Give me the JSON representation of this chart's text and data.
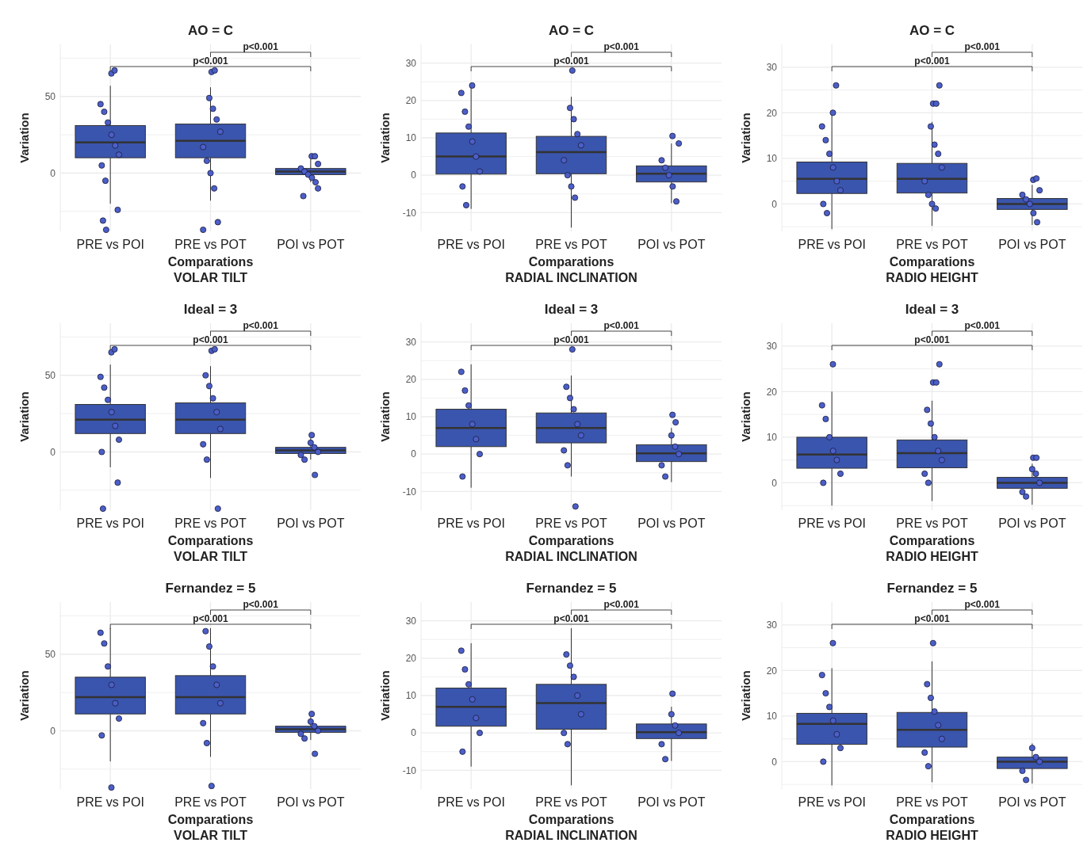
{
  "chart_data": [
    {
      "type": "box",
      "title": "AO = C",
      "xlabel": "Comparations",
      "ylabel": "Variation",
      "annotations": [
        "p<0.001",
        "p<0.001",
        "VOLAR TILT"
      ],
      "categories": [
        "PRE vs POI",
        "PRE vs POT",
        "POI vs POT"
      ],
      "ylim": [
        -38,
        84
      ],
      "yticks": [
        {
          "value": -25,
          "label": null
        },
        0,
        {
          "value": 25,
          "label": null
        },
        50,
        {
          "value": 75,
          "label": null
        }
      ],
      "grid": true,
      "marker": "circle",
      "series": [
        {
          "type": "box",
          "color": "#3a55ad",
          "boxes": [
            {
              "low": -20,
              "q1": 10,
              "median": 20,
              "q3": 31,
              "high": 57,
              "outliers": [
                65,
                67,
                -24,
                -31,
                -37
              ]
            },
            {
              "low": -18,
              "q1": 10,
              "median": 21,
              "q3": 32,
              "high": 56,
              "outliers": [
                66,
                67,
                -32,
                -37
              ]
            },
            {
              "low": -6,
              "q1": -1,
              "median": 1,
              "q3": 3,
              "high": 9,
              "outliers": [
                11,
                11,
                -10,
                -15
              ]
            }
          ]
        },
        {
          "type": "scatter",
          "color": "#4b5fc9",
          "x": [
            "PRE vs POI",
            "PRE vs POI",
            "PRE vs POI",
            "PRE vs POI",
            "PRE vs POI",
            "PRE vs POI",
            "PRE vs POI",
            "PRE vs POI",
            "PRE vs POT",
            "PRE vs POT",
            "PRE vs POT",
            "PRE vs POT",
            "PRE vs POT",
            "PRE vs POT",
            "PRE vs POT",
            "PRE vs POT",
            "POI vs POT",
            "POI vs POT",
            "POI vs POT",
            "POI vs POT",
            "POI vs POT",
            "POI vs POT"
          ],
          "values": [
            45,
            40,
            33,
            25,
            18,
            12,
            5,
            -5,
            49,
            42,
            35,
            27,
            17,
            8,
            0,
            -10,
            6,
            3,
            1,
            -1,
            -3,
            -6
          ]
        }
      ]
    },
    {
      "type": "box",
      "title": "AO = C",
      "xlabel": "Comparations",
      "ylabel": "Variation",
      "annotations": [
        "p<0.001",
        "p<0.001",
        "RADIAL INCLINATION"
      ],
      "categories": [
        "PRE vs POI",
        "PRE vs POT",
        "POI vs POT"
      ],
      "ylim": [
        -15,
        35
      ],
      "yticks": [
        -10,
        {
          "value": -5,
          "label": null
        },
        0,
        {
          "value": 5,
          "label": null
        },
        10,
        {
          "value": 15,
          "label": null
        },
        20,
        {
          "value": 25,
          "label": null
        },
        30
      ],
      "grid": true,
      "marker": "circle",
      "series": [
        {
          "type": "box",
          "color": "#3a55ad",
          "boxes": [
            {
              "low": -9,
              "q1": 0.3,
              "median": 5,
              "q3": 11.3,
              "high": 23.5,
              "outliers": [
                24
              ]
            },
            {
              "low": -14,
              "q1": 0.4,
              "median": 6.2,
              "q3": 10.4,
              "high": 21,
              "outliers": [
                28
              ]
            },
            {
              "low": -7.5,
              "q1": -1.8,
              "median": 0.4,
              "q3": 2.5,
              "high": 8.5,
              "outliers": [
                10.5
              ]
            }
          ]
        },
        {
          "type": "scatter",
          "color": "#4b5fc9",
          "x": [
            "PRE vs POI",
            "PRE vs POI",
            "PRE vs POI",
            "PRE vs POI",
            "PRE vs POI",
            "PRE vs POI",
            "PRE vs POI",
            "PRE vs POI",
            "PRE vs POT",
            "PRE vs POT",
            "PRE vs POT",
            "PRE vs POT",
            "PRE vs POT",
            "PRE vs POT",
            "PRE vs POT",
            "PRE vs POT",
            "POI vs POT",
            "POI vs POT",
            "POI vs POT",
            "POI vs POT",
            "POI vs POT",
            "POI vs POT"
          ],
          "values": [
            22,
            17,
            13,
            9,
            5,
            1,
            -3,
            -8,
            18,
            15,
            11,
            8,
            4,
            0,
            -3,
            -6,
            8.5,
            4,
            2,
            0,
            -3,
            -7
          ]
        }
      ]
    },
    {
      "type": "box",
      "title": "AO = C",
      "xlabel": "Comparations",
      "ylabel": "Variation",
      "annotations": [
        "p<0.001",
        "p<0.001",
        "RADIO HEIGHT"
      ],
      "categories": [
        "PRE vs POI",
        "PRE vs POT",
        "POI vs POT"
      ],
      "ylim": [
        -6,
        35
      ],
      "yticks": [
        {
          "value": -5,
          "label": null
        },
        0,
        {
          "value": 5,
          "label": null
        },
        10,
        {
          "value": 15,
          "label": null
        },
        20,
        {
          "value": 25,
          "label": null
        },
        30
      ],
      "grid": true,
      "marker": "circle",
      "series": [
        {
          "type": "box",
          "color": "#3a55ad",
          "boxes": [
            {
              "low": -5.5,
              "q1": 2.3,
              "median": 5.5,
              "q3": 9.2,
              "high": 19.5,
              "outliers": [
                20,
                26
              ]
            },
            {
              "low": -4.8,
              "q1": 2.4,
              "median": 5.5,
              "q3": 8.9,
              "high": 18,
              "outliers": [
                22,
                22,
                26
              ]
            },
            {
              "low": -4.6,
              "q1": -1.2,
              "median": 0,
              "q3": 1.2,
              "high": 4.2,
              "outliers": [
                5.3,
                5.6
              ]
            }
          ]
        },
        {
          "type": "scatter",
          "color": "#4b5fc9",
          "x": [
            "PRE vs POI",
            "PRE vs POI",
            "PRE vs POI",
            "PRE vs POI",
            "PRE vs POI",
            "PRE vs POI",
            "PRE vs POI",
            "PRE vs POI",
            "PRE vs POT",
            "PRE vs POT",
            "PRE vs POT",
            "PRE vs POT",
            "PRE vs POT",
            "PRE vs POT",
            "PRE vs POT",
            "PRE vs POT",
            "POI vs POT",
            "POI vs POT",
            "POI vs POT",
            "POI vs POT",
            "POI vs POT",
            "POI vs POT"
          ],
          "values": [
            17,
            14,
            11,
            8,
            5,
            3,
            0,
            -2,
            17,
            13,
            11,
            8,
            5,
            2,
            0,
            -1,
            3,
            2,
            1,
            0,
            -2,
            -4
          ]
        }
      ]
    },
    {
      "type": "box",
      "title": "Ideal = 3",
      "xlabel": "Comparations",
      "ylabel": "Variation",
      "annotations": [
        "p<0.001",
        "p<0.001",
        "VOLAR TILT"
      ],
      "categories": [
        "PRE vs POI",
        "PRE vs POT",
        "POI vs POT"
      ],
      "ylim": [
        -38,
        84
      ],
      "yticks": [
        {
          "value": -25,
          "label": null
        },
        0,
        {
          "value": 25,
          "label": null
        },
        50,
        {
          "value": 75,
          "label": null
        }
      ],
      "grid": true,
      "marker": "circle",
      "series": [
        {
          "type": "box",
          "color": "#3a55ad",
          "boxes": [
            {
              "low": -10,
              "q1": 12,
              "median": 21,
              "q3": 31,
              "high": 57,
              "outliers": [
                65,
                67,
                -20,
                -37
              ]
            },
            {
              "low": -17,
              "q1": 12,
              "median": 21,
              "q3": 32,
              "high": 56,
              "outliers": [
                66,
                67,
                -37
              ]
            },
            {
              "low": -5,
              "q1": -1,
              "median": 1,
              "q3": 3,
              "high": 9,
              "outliers": [
                11,
                -15
              ]
            }
          ]
        },
        {
          "type": "scatter",
          "color": "#4b5fc9",
          "x": [
            "PRE vs POI",
            "PRE vs POI",
            "PRE vs POI",
            "PRE vs POI",
            "PRE vs POI",
            "PRE vs POI",
            "PRE vs POI",
            "PRE vs POT",
            "PRE vs POT",
            "PRE vs POT",
            "PRE vs POT",
            "PRE vs POT",
            "PRE vs POT",
            "PRE vs POT",
            "POI vs POT",
            "POI vs POT",
            "POI vs POT",
            "POI vs POT",
            "POI vs POT"
          ],
          "values": [
            49,
            42,
            34,
            26,
            17,
            8,
            0,
            50,
            43,
            35,
            26,
            15,
            5,
            -5,
            6,
            3,
            0,
            -2,
            -5
          ]
        }
      ]
    },
    {
      "type": "box",
      "title": "Ideal = 3",
      "xlabel": "Comparations",
      "ylabel": "Variation",
      "annotations": [
        "p<0.001",
        "p<0.001",
        "RADIAL INCLINATION"
      ],
      "categories": [
        "PRE vs POI",
        "PRE vs POT",
        "POI vs POT"
      ],
      "ylim": [
        -15,
        35
      ],
      "yticks": [
        -10,
        {
          "value": -5,
          "label": null
        },
        0,
        {
          "value": 5,
          "label": null
        },
        10,
        {
          "value": 15,
          "label": null
        },
        20,
        {
          "value": 25,
          "label": null
        },
        30
      ],
      "grid": true,
      "marker": "circle",
      "series": [
        {
          "type": "box",
          "color": "#3a55ad",
          "boxes": [
            {
              "low": -9,
              "q1": 2,
              "median": 7,
              "q3": 12,
              "high": 24
            },
            {
              "low": -6,
              "q1": 3,
              "median": 7,
              "q3": 11,
              "high": 21,
              "outliers": [
                28,
                -14
              ]
            },
            {
              "low": -7.5,
              "q1": -2,
              "median": 0.2,
              "q3": 2.5,
              "high": 7,
              "outliers": [
                10.5,
                8.5
              ]
            }
          ]
        },
        {
          "type": "scatter",
          "color": "#4b5fc9",
          "x": [
            "PRE vs POI",
            "PRE vs POI",
            "PRE vs POI",
            "PRE vs POI",
            "PRE vs POI",
            "PRE vs POI",
            "PRE vs POI",
            "PRE vs POT",
            "PRE vs POT",
            "PRE vs POT",
            "PRE vs POT",
            "PRE vs POT",
            "PRE vs POT",
            "PRE vs POT",
            "POI vs POT",
            "POI vs POT",
            "POI vs POT",
            "POI vs POT",
            "POI vs POT"
          ],
          "values": [
            22,
            17,
            13,
            8,
            4,
            0,
            -6,
            18,
            15,
            12,
            8,
            5,
            1,
            -3,
            5,
            2,
            0,
            -3,
            -6
          ]
        }
      ]
    },
    {
      "type": "box",
      "title": "Ideal = 3",
      "xlabel": "Comparations",
      "ylabel": "Variation",
      "annotations": [
        "p<0.001",
        "p<0.001",
        "RADIO HEIGHT"
      ],
      "categories": [
        "PRE vs POI",
        "PRE vs POT",
        "POI vs POT"
      ],
      "ylim": [
        -6,
        35
      ],
      "yticks": [
        {
          "value": -5,
          "label": null
        },
        0,
        {
          "value": 5,
          "label": null
        },
        10,
        {
          "value": 15,
          "label": null
        },
        20,
        {
          "value": 25,
          "label": null
        },
        30
      ],
      "grid": true,
      "marker": "circle",
      "series": [
        {
          "type": "box",
          "color": "#3a55ad",
          "boxes": [
            {
              "low": -5,
              "q1": 3.2,
              "median": 6.2,
              "q3": 10,
              "high": 20,
              "outliers": [
                26
              ]
            },
            {
              "low": -4,
              "q1": 3.3,
              "median": 6.5,
              "q3": 9.4,
              "high": 18,
              "outliers": [
                22,
                22,
                26
              ]
            },
            {
              "low": -4.8,
              "q1": -1.2,
              "median": 0,
              "q3": 1.2,
              "high": 4.2,
              "outliers": [
                5.5,
                5.5
              ]
            }
          ]
        },
        {
          "type": "scatter",
          "color": "#4b5fc9",
          "x": [
            "PRE vs POI",
            "PRE vs POI",
            "PRE vs POI",
            "PRE vs POI",
            "PRE vs POI",
            "PRE vs POI",
            "PRE vs POI",
            "PRE vs POT",
            "PRE vs POT",
            "PRE vs POT",
            "PRE vs POT",
            "PRE vs POT",
            "PRE vs POT",
            "PRE vs POT",
            "POI vs POT",
            "POI vs POT",
            "POI vs POT",
            "POI vs POT",
            "POI vs POT"
          ],
          "values": [
            17,
            14,
            10,
            7,
            5,
            2,
            0,
            16,
            13,
            10,
            7,
            5,
            2,
            0,
            3,
            2,
            0,
            -2,
            -3
          ]
        }
      ]
    },
    {
      "type": "box",
      "title": "Fernandez = 5",
      "xlabel": "Comparations",
      "ylabel": "Variation",
      "annotations": [
        "p<0.001",
        "p<0.001",
        "VOLAR TILT"
      ],
      "categories": [
        "PRE vs POI",
        "PRE vs POT",
        "POI vs POT"
      ],
      "ylim": [
        -38,
        84
      ],
      "yticks": [
        {
          "value": -25,
          "label": null
        },
        0,
        {
          "value": 25,
          "label": null
        },
        50,
        {
          "value": 75,
          "label": null
        }
      ],
      "grid": true,
      "marker": "circle",
      "series": [
        {
          "type": "box",
          "color": "#3a55ad",
          "boxes": [
            {
              "low": -20,
              "q1": 11,
              "median": 22,
              "q3": 35,
              "high": 67,
              "outliers": [
                -37
              ]
            },
            {
              "low": -17,
              "q1": 11,
              "median": 22,
              "q3": 36,
              "high": 67,
              "outliers": [
                -36
              ]
            },
            {
              "low": -6,
              "q1": -1,
              "median": 1,
              "q3": 3,
              "high": 9,
              "outliers": [
                11,
                -15
              ]
            }
          ]
        },
        {
          "type": "scatter",
          "color": "#4b5fc9",
          "x": [
            "PRE vs POI",
            "PRE vs POI",
            "PRE vs POI",
            "PRE vs POI",
            "PRE vs POI",
            "PRE vs POI",
            "PRE vs POI",
            "PRE vs POT",
            "PRE vs POT",
            "PRE vs POT",
            "PRE vs POT",
            "PRE vs POT",
            "PRE vs POT",
            "PRE vs POT",
            "POI vs POT",
            "POI vs POT",
            "POI vs POT",
            "POI vs POT",
            "POI vs POT"
          ],
          "values": [
            64,
            57,
            42,
            30,
            18,
            8,
            -3,
            65,
            55,
            42,
            30,
            18,
            5,
            -8,
            6,
            3,
            0,
            -2,
            -5
          ]
        }
      ]
    },
    {
      "type": "box",
      "title": "Fernandez = 5",
      "xlabel": "Comparations",
      "ylabel": "Variation",
      "annotations": [
        "p<0.001",
        "p<0.001",
        "RADIAL INCLINATION"
      ],
      "categories": [
        "PRE vs POI",
        "PRE vs POT",
        "POI vs POT"
      ],
      "ylim": [
        -15,
        35
      ],
      "yticks": [
        -10,
        {
          "value": -5,
          "label": null
        },
        0,
        {
          "value": 5,
          "label": null
        },
        10,
        {
          "value": 15,
          "label": null
        },
        20,
        {
          "value": 25,
          "label": null
        },
        30
      ],
      "grid": true,
      "marker": "circle",
      "series": [
        {
          "type": "box",
          "color": "#3a55ad",
          "boxes": [
            {
              "low": -9,
              "q1": 1.8,
              "median": 7,
              "q3": 12,
              "high": 24
            },
            {
              "low": -14,
              "q1": 1,
              "median": 8,
              "q3": 13,
              "high": 28
            },
            {
              "low": -7.5,
              "q1": -1.5,
              "median": 0.2,
              "q3": 2.4,
              "high": 7,
              "outliers": [
                10.5
              ]
            }
          ]
        },
        {
          "type": "scatter",
          "color": "#4b5fc9",
          "x": [
            "PRE vs POI",
            "PRE vs POI",
            "PRE vs POI",
            "PRE vs POI",
            "PRE vs POI",
            "PRE vs POI",
            "PRE vs POI",
            "PRE vs POT",
            "PRE vs POT",
            "PRE vs POT",
            "PRE vs POT",
            "PRE vs POT",
            "PRE vs POT",
            "PRE vs POT",
            "POI vs POT",
            "POI vs POT",
            "POI vs POT",
            "POI vs POT",
            "POI vs POT"
          ],
          "values": [
            22,
            17,
            13,
            9,
            4,
            0,
            -5,
            21,
            18,
            15,
            10,
            5,
            0,
            -3,
            5,
            2,
            0,
            -3,
            -7
          ]
        }
      ]
    },
    {
      "type": "box",
      "title": "Fernandez = 5",
      "xlabel": "Comparations",
      "ylabel": "Variation",
      "annotations": [
        "p<0.001",
        "p<0.001",
        "RADIO HEIGHT"
      ],
      "categories": [
        "PRE vs POI",
        "PRE vs POT",
        "POI vs POT"
      ],
      "ylim": [
        -6,
        35
      ],
      "yticks": [
        {
          "value": -5,
          "label": null
        },
        0,
        {
          "value": 5,
          "label": null
        },
        10,
        {
          "value": 15,
          "label": null
        },
        20,
        {
          "value": 25,
          "label": null
        },
        30
      ],
      "grid": true,
      "marker": "circle",
      "series": [
        {
          "type": "box",
          "color": "#3a55ad",
          "boxes": [
            {
              "low": -5.2,
              "q1": 3.8,
              "median": 8.3,
              "q3": 10.6,
              "high": 20.5,
              "outliers": [
                26
              ]
            },
            {
              "low": -4.5,
              "q1": 3.2,
              "median": 7,
              "q3": 10.8,
              "high": 22,
              "outliers": [
                26
              ]
            },
            {
              "low": -4.8,
              "q1": -1.5,
              "median": 0,
              "q3": 1,
              "high": 4
            }
          ]
        },
        {
          "type": "scatter",
          "color": "#4b5fc9",
          "x": [
            "PRE vs POI",
            "PRE vs POI",
            "PRE vs POI",
            "PRE vs POI",
            "PRE vs POI",
            "PRE vs POI",
            "PRE vs POI",
            "PRE vs POT",
            "PRE vs POT",
            "PRE vs POT",
            "PRE vs POT",
            "PRE vs POT",
            "PRE vs POT",
            "PRE vs POT",
            "POI vs POT",
            "POI vs POT",
            "POI vs POT",
            "POI vs POT",
            "POI vs POT"
          ],
          "values": [
            19,
            15,
            12,
            9,
            6,
            3,
            0,
            17,
            14,
            11,
            8,
            5,
            2,
            -1,
            3,
            1,
            0,
            -2,
            -4
          ]
        }
      ]
    }
  ]
}
